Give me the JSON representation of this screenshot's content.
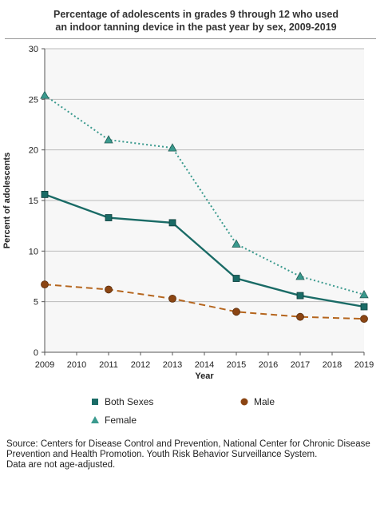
{
  "title_line1": "Percentage of adolescents in grades 9 through 12 who used",
  "title_line2": "an indoor tanning device in the past year by sex, 2009-2019",
  "source_line1": "Source: Centers for Disease Control and Prevention, National Center for Chronic Disease",
  "source_line2": "Prevention and Health Promotion. Youth Risk Behavior Surveillance System.",
  "source_line3": "Data are not age-adjusted.",
  "colors": {
    "both": "#1a6b66",
    "male": "#8b4513",
    "male_line": "#b5651d",
    "female": "#3a9a8e",
    "plot_bg": "#f7f7f7",
    "grid": "#bbbbbb"
  },
  "chart_data": {
    "type": "line",
    "xlabel": "Year",
    "ylabel": "Percent of adolescents",
    "xlim": [
      2009,
      2019
    ],
    "ylim": [
      0,
      30
    ],
    "x_ticks": [
      "2009",
      "2010",
      "2012",
      "2014",
      "2016",
      "2018",
      "2019"
    ],
    "x_tick_values": [
      2009,
      2010,
      2011,
      2012,
      2013,
      2014,
      2015,
      2016,
      2017,
      2018,
      2019
    ],
    "x_tick_labels": [
      "2009",
      "2010",
      "2011",
      "2012",
      "2013",
      "2014",
      "2015",
      "2016",
      "2017",
      "2018",
      "2019"
    ],
    "y_ticks": [
      0,
      5,
      10,
      15,
      20,
      25,
      30
    ],
    "y_tick_labels": [
      "0",
      "5",
      "10",
      "15",
      "20",
      "25",
      "30"
    ],
    "grid": true,
    "legend_position": "bottom",
    "x": [
      2009,
      2011,
      2013,
      2015,
      2017,
      2019
    ],
    "series": [
      {
        "name": "Both Sexes",
        "values": [
          15.6,
          13.3,
          12.8,
          7.3,
          5.6,
          4.5
        ],
        "marker": "square",
        "style": "solid"
      },
      {
        "name": "Male",
        "values": [
          6.7,
          6.2,
          5.3,
          4.0,
          3.5,
          3.3
        ],
        "marker": "circle",
        "style": "dashed"
      },
      {
        "name": "Female",
        "values": [
          25.4,
          21.0,
          20.2,
          10.7,
          7.5,
          5.7
        ],
        "marker": "triangle",
        "style": "dotted"
      }
    ]
  }
}
